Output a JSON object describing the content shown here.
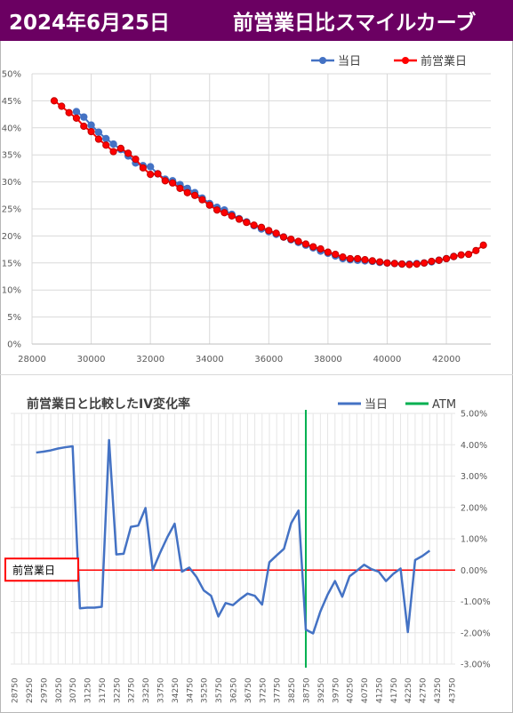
{
  "header": {
    "date": "2024年6月25日",
    "title": "前営業日比スマイルカーブ",
    "background_color": "#6b0062"
  },
  "chart_data": [
    {
      "type": "line",
      "title": "",
      "legend": {
        "position": "top-right"
      },
      "grid": true,
      "xlim": [
        28000,
        43500
      ],
      "xticks": [
        28000,
        30000,
        32000,
        34000,
        36000,
        38000,
        40000,
        42000
      ],
      "ylim": [
        0,
        50
      ],
      "yticks": [
        0,
        5,
        10,
        15,
        20,
        25,
        30,
        35,
        40,
        45,
        50
      ],
      "y_unit": "%",
      "series": [
        {
          "name": "当日",
          "color": "#4472c4",
          "x": [
            29500,
            29750,
            30000,
            30250,
            30500,
            30750,
            31000,
            31250,
            31500,
            31750,
            32000,
            32250,
            32500,
            32750,
            33000,
            33250,
            33500,
            33750,
            34000,
            34250,
            34500,
            34750,
            35000,
            35250,
            35500,
            35750,
            36000,
            36250,
            36500,
            36750,
            37000,
            37250,
            37500,
            37750,
            38000,
            38250,
            38500,
            38750,
            39000,
            39250,
            39500,
            39750,
            40000,
            40250,
            40500,
            40750,
            41000,
            41250,
            41500,
            41750,
            42000,
            42250
          ],
          "y": [
            43.0,
            42.0,
            40.5,
            39.2,
            38.0,
            37.0,
            36.0,
            34.8,
            33.5,
            33.0,
            32.8,
            31.5,
            30.5,
            30.2,
            29.5,
            28.8,
            28.0,
            27.0,
            26.0,
            25.3,
            24.8,
            24.0,
            23.2,
            22.6,
            21.9,
            21.3,
            20.8,
            20.3,
            19.8,
            19.3,
            18.8,
            18.3,
            17.8,
            17.2,
            16.8,
            16.3,
            15.8,
            15.6,
            15.5,
            15.4,
            15.3,
            15.1,
            15.0,
            14.9,
            14.8,
            14.8,
            14.9,
            15.0,
            15.2,
            15.5,
            15.8,
            16.2
          ]
        },
        {
          "name": "前営業日",
          "color": "#ff0000",
          "x": [
            28750,
            29000,
            29250,
            29500,
            29750,
            30000,
            30250,
            30500,
            30750,
            31000,
            31250,
            31500,
            31750,
            32000,
            32250,
            32500,
            32750,
            33000,
            33250,
            33500,
            33750,
            34000,
            34250,
            34500,
            34750,
            35000,
            35250,
            35500,
            35750,
            36000,
            36250,
            36500,
            36750,
            37000,
            37250,
            37500,
            37750,
            38000,
            38250,
            38500,
            38750,
            39000,
            39250,
            39500,
            39750,
            40000,
            40250,
            40500,
            40750,
            41000,
            41250,
            41500,
            41750,
            42000,
            42250,
            42500,
            42750,
            43000,
            43250
          ],
          "y": [
            45.0,
            44.0,
            42.8,
            41.8,
            40.3,
            39.3,
            37.9,
            36.8,
            35.6,
            36.2,
            35.3,
            34.2,
            32.6,
            31.4,
            31.5,
            30.2,
            29.8,
            28.8,
            28.0,
            27.5,
            26.7,
            25.7,
            24.8,
            24.3,
            23.7,
            23.1,
            22.5,
            22.0,
            21.6,
            21.0,
            20.5,
            19.8,
            19.4,
            19.0,
            18.5,
            18.0,
            17.6,
            17.0,
            16.6,
            16.1,
            15.8,
            15.8,
            15.6,
            15.4,
            15.2,
            15.0,
            14.9,
            14.8,
            14.7,
            14.8,
            15.0,
            15.3,
            15.5,
            15.8,
            16.2,
            16.5,
            16.6,
            17.3,
            18.3
          ]
        }
      ]
    },
    {
      "type": "line",
      "title": "前営業日と比較したIV変化率",
      "legend": {
        "position": "top-right"
      },
      "grid": true,
      "categories": [
        "28750",
        "29000",
        "29250",
        "29500",
        "29750",
        "30000",
        "30250",
        "30500",
        "30750",
        "31000",
        "31250",
        "31500",
        "31750",
        "32000",
        "32250",
        "32500",
        "32750",
        "33000",
        "33250",
        "33500",
        "33750",
        "34000",
        "34250",
        "34500",
        "34750",
        "35000",
        "35250",
        "35500",
        "35750",
        "36000",
        "36250",
        "36500",
        "36750",
        "37000",
        "37250",
        "37500",
        "37750",
        "38000",
        "38250",
        "38500",
        "38750",
        "39000",
        "39250",
        "39500",
        "39750",
        "40000",
        "40250",
        "40500",
        "40750",
        "41000",
        "41250",
        "41500",
        "41750",
        "42000",
        "42250",
        "42500",
        "42750",
        "43000",
        "43250",
        "43500",
        "43750"
      ],
      "x_tick_labels": [
        "28750",
        "29250",
        "29750",
        "30250",
        "30750",
        "31250",
        "31750",
        "32250",
        "32750",
        "33250",
        "33750",
        "34250",
        "34750",
        "35250",
        "35750",
        "36250",
        "36750",
        "37250",
        "37750",
        "38250",
        "38750",
        "39250",
        "39750",
        "40250",
        "40750",
        "41250",
        "41750",
        "42250",
        "42750",
        "43250",
        "43750"
      ],
      "ylim": [
        -3,
        5
      ],
      "yticks": [
        -3,
        -2,
        -1,
        0,
        1,
        2,
        3,
        4,
        5
      ],
      "y_tick_labels": [
        "-3.00%",
        "-2.00%",
        "-1.00%",
        "0.00%",
        "1.00%",
        "2.00%",
        "3.00%",
        "4.00%",
        "5.00%"
      ],
      "y_axis_side": "right",
      "atm_strike": "38750",
      "reference_line_value": 0,
      "reference_line_label": "前営業日",
      "series": [
        {
          "name": "当日",
          "color": "#4472c4",
          "values": [
            null,
            null,
            null,
            3.75,
            3.78,
            3.82,
            3.88,
            3.92,
            3.95,
            -1.22,
            -1.2,
            -1.2,
            -1.17,
            4.15,
            0.5,
            0.52,
            1.38,
            1.42,
            1.98,
            0.0,
            0.55,
            1.05,
            1.48,
            -0.05,
            0.08,
            -0.22,
            -0.65,
            -0.82,
            -1.48,
            -1.05,
            -1.12,
            -0.92,
            -0.75,
            -0.82,
            -1.1,
            0.25,
            0.47,
            0.68,
            1.5,
            1.9,
            -1.9,
            -2.02,
            -1.32,
            -0.78,
            -0.35,
            -0.85,
            -0.2,
            -0.02,
            0.17,
            0.03,
            -0.05,
            -0.35,
            -0.12,
            0.05,
            -1.98,
            0.32,
            0.45,
            0.62,
            null,
            null,
            null
          ]
        },
        {
          "name": "ATM",
          "color": "#00b050"
        }
      ]
    }
  ]
}
